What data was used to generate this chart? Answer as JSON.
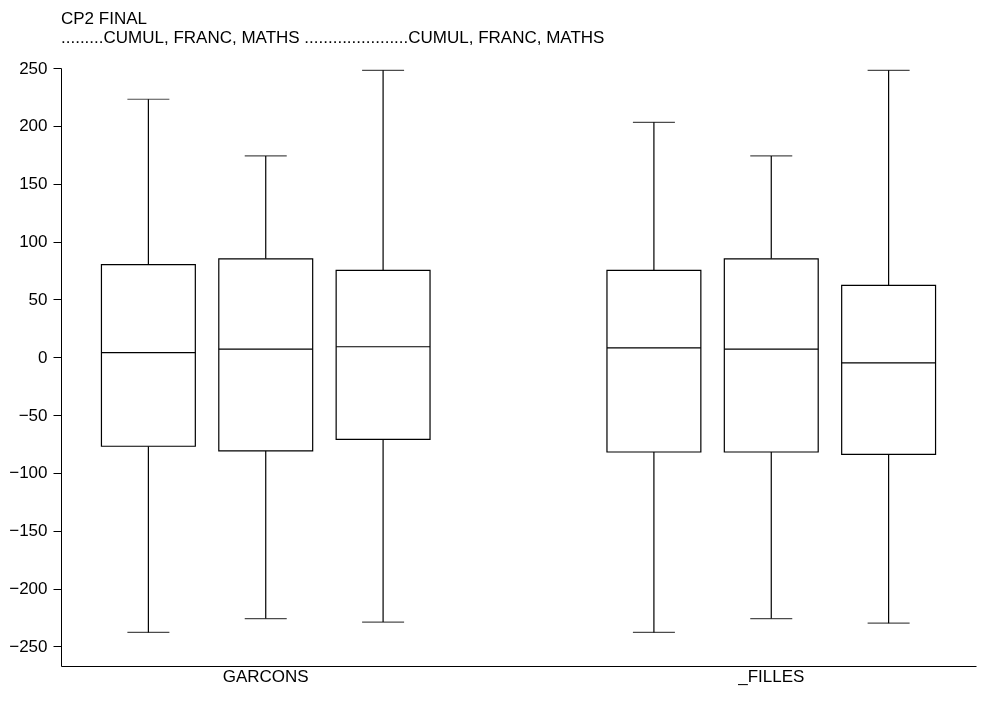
{
  "chart_data": {
    "type": "box",
    "title": "CP2 FINAL",
    "subtitle": ".........CUMUL, FRANC, MATHS ......................CUMUL, FRANC, MATHS",
    "categories": [
      "GARCONS",
      "_FILLES"
    ],
    "ylim": [
      -267,
      250
    ],
    "yticks": [
      -250,
      -200,
      -150,
      -100,
      -50,
      0,
      50,
      100,
      150,
      200,
      250
    ],
    "grid": false,
    "series": [
      {
        "color": "#000000",
        "boxes": [
          {
            "low": -238,
            "q1": -77,
            "median": 4,
            "q3": 80,
            "high": 223
          },
          {
            "low": -238,
            "q1": -82,
            "median": 8,
            "q3": 75,
            "high": 203
          }
        ]
      },
      {
        "color": "#000000",
        "boxes": [
          {
            "low": -226,
            "q1": -81,
            "median": 7,
            "q3": 85,
            "high": 174
          },
          {
            "low": -226,
            "q1": -82,
            "median": 7,
            "q3": 85,
            "high": 174
          }
        ]
      },
      {
        "color": "#000000",
        "boxes": [
          {
            "low": -229,
            "q1": -71,
            "median": 9,
            "q3": 75,
            "high": 248
          },
          {
            "low": -230,
            "q1": -84,
            "median": -5,
            "q3": 62,
            "high": 248
          }
        ]
      }
    ]
  }
}
